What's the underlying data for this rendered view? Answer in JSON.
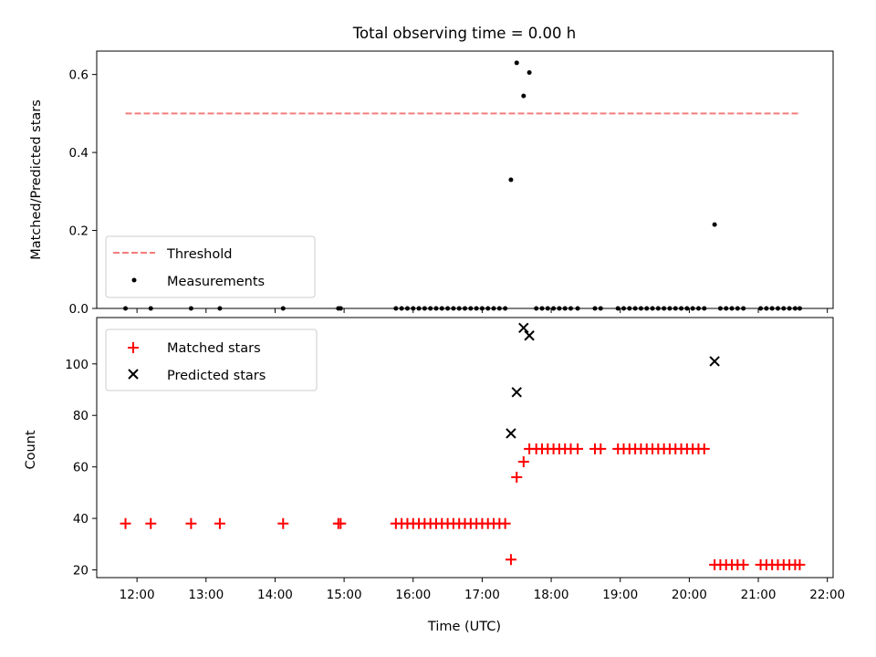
{
  "chart_data": [
    {
      "type": "scatter",
      "title": "Total observing time = 0.00 h",
      "xlabel": "",
      "ylabel": "Matched/Predicted stars",
      "xlim": [
        "11:25",
        "22:05"
      ],
      "ylim": [
        0.0,
        0.66
      ],
      "yticks": [
        "0.0",
        "0.2",
        "0.4",
        "0.6"
      ],
      "legend_position": "lower-left",
      "threshold": {
        "name": "Threshold",
        "y": 0.5,
        "x_start": "11:50",
        "x_end": "21:35",
        "color": "#f47c7c",
        "style": "dashed"
      },
      "series": [
        {
          "name": "Measurements",
          "color": "#000000",
          "marker": "dot",
          "points": [
            {
              "x": "11:50",
              "y": 0.0
            },
            {
              "x": "12:12",
              "y": 0.0
            },
            {
              "x": "12:47",
              "y": 0.0
            },
            {
              "x": "13:12",
              "y": 0.0
            },
            {
              "x": "14:07",
              "y": 0.0
            },
            {
              "x": "14:55",
              "y": 0.0
            },
            {
              "x": "14:57",
              "y": 0.0
            },
            {
              "x": "15:45",
              "y": 0.0
            },
            {
              "x": "15:50",
              "y": 0.0
            },
            {
              "x": "15:55",
              "y": 0.0
            },
            {
              "x": "16:00",
              "y": 0.0
            },
            {
              "x": "16:05",
              "y": 0.0
            },
            {
              "x": "16:10",
              "y": 0.0
            },
            {
              "x": "16:15",
              "y": 0.0
            },
            {
              "x": "16:20",
              "y": 0.0
            },
            {
              "x": "16:25",
              "y": 0.0
            },
            {
              "x": "16:30",
              "y": 0.0
            },
            {
              "x": "16:35",
              "y": 0.0
            },
            {
              "x": "16:40",
              "y": 0.0
            },
            {
              "x": "16:45",
              "y": 0.0
            },
            {
              "x": "16:50",
              "y": 0.0
            },
            {
              "x": "16:55",
              "y": 0.0
            },
            {
              "x": "17:00",
              "y": 0.0
            },
            {
              "x": "17:05",
              "y": 0.0
            },
            {
              "x": "17:10",
              "y": 0.0
            },
            {
              "x": "17:15",
              "y": 0.0
            },
            {
              "x": "17:20",
              "y": 0.0
            },
            {
              "x": "17:25",
              "y": 0.33
            },
            {
              "x": "17:30",
              "y": 0.63
            },
            {
              "x": "17:36",
              "y": 0.545
            },
            {
              "x": "17:41",
              "y": 0.605
            },
            {
              "x": "17:47",
              "y": 0.0
            },
            {
              "x": "17:52",
              "y": 0.0
            },
            {
              "x": "17:57",
              "y": 0.0
            },
            {
              "x": "18:02",
              "y": 0.0
            },
            {
              "x": "18:07",
              "y": 0.0
            },
            {
              "x": "18:12",
              "y": 0.0
            },
            {
              "x": "18:17",
              "y": 0.0
            },
            {
              "x": "18:23",
              "y": 0.0
            },
            {
              "x": "18:38",
              "y": 0.0
            },
            {
              "x": "18:43",
              "y": 0.0
            },
            {
              "x": "18:58",
              "y": 0.0
            },
            {
              "x": "19:03",
              "y": 0.0
            },
            {
              "x": "19:08",
              "y": 0.0
            },
            {
              "x": "19:13",
              "y": 0.0
            },
            {
              "x": "19:18",
              "y": 0.0
            },
            {
              "x": "19:23",
              "y": 0.0
            },
            {
              "x": "19:28",
              "y": 0.0
            },
            {
              "x": "19:33",
              "y": 0.0
            },
            {
              "x": "19:38",
              "y": 0.0
            },
            {
              "x": "19:43",
              "y": 0.0
            },
            {
              "x": "19:48",
              "y": 0.0
            },
            {
              "x": "19:53",
              "y": 0.0
            },
            {
              "x": "19:58",
              "y": 0.0
            },
            {
              "x": "20:03",
              "y": 0.0
            },
            {
              "x": "20:08",
              "y": 0.0
            },
            {
              "x": "20:13",
              "y": 0.0
            },
            {
              "x": "20:22",
              "y": 0.215
            },
            {
              "x": "20:27",
              "y": 0.0
            },
            {
              "x": "20:32",
              "y": 0.0
            },
            {
              "x": "20:37",
              "y": 0.0
            },
            {
              "x": "20:42",
              "y": 0.0
            },
            {
              "x": "20:47",
              "y": 0.0
            },
            {
              "x": "21:02",
              "y": 0.0
            },
            {
              "x": "21:07",
              "y": 0.0
            },
            {
              "x": "21:12",
              "y": 0.0
            },
            {
              "x": "21:17",
              "y": 0.0
            },
            {
              "x": "21:22",
              "y": 0.0
            },
            {
              "x": "21:27",
              "y": 0.0
            },
            {
              "x": "21:32",
              "y": 0.0
            },
            {
              "x": "21:36",
              "y": 0.0
            }
          ]
        }
      ]
    },
    {
      "type": "scatter",
      "title": "",
      "xlabel": "Time (UTC)",
      "ylabel": "Count",
      "xlim": [
        "11:25",
        "22:05"
      ],
      "ylim": [
        17,
        118
      ],
      "yticks": [
        "20",
        "40",
        "60",
        "80",
        "100"
      ],
      "xticks": [
        "12:00",
        "13:00",
        "14:00",
        "15:00",
        "16:00",
        "17:00",
        "18:00",
        "19:00",
        "20:00",
        "21:00",
        "22:00"
      ],
      "legend_position": "upper-left",
      "series": [
        {
          "name": "Matched stars",
          "color": "#ff0000",
          "marker": "plus",
          "points": [
            {
              "x": "11:50",
              "y": 38
            },
            {
              "x": "12:12",
              "y": 38
            },
            {
              "x": "12:47",
              "y": 38
            },
            {
              "x": "13:12",
              "y": 38
            },
            {
              "x": "14:07",
              "y": 38
            },
            {
              "x": "14:55",
              "y": 38
            },
            {
              "x": "14:57",
              "y": 38
            },
            {
              "x": "15:45",
              "y": 38
            },
            {
              "x": "15:50",
              "y": 38
            },
            {
              "x": "15:55",
              "y": 38
            },
            {
              "x": "16:00",
              "y": 38
            },
            {
              "x": "16:05",
              "y": 38
            },
            {
              "x": "16:10",
              "y": 38
            },
            {
              "x": "16:15",
              "y": 38
            },
            {
              "x": "16:20",
              "y": 38
            },
            {
              "x": "16:25",
              "y": 38
            },
            {
              "x": "16:30",
              "y": 38
            },
            {
              "x": "16:35",
              "y": 38
            },
            {
              "x": "16:40",
              "y": 38
            },
            {
              "x": "16:45",
              "y": 38
            },
            {
              "x": "16:50",
              "y": 38
            },
            {
              "x": "16:55",
              "y": 38
            },
            {
              "x": "17:00",
              "y": 38
            },
            {
              "x": "17:05",
              "y": 38
            },
            {
              "x": "17:10",
              "y": 38
            },
            {
              "x": "17:15",
              "y": 38
            },
            {
              "x": "17:20",
              "y": 38
            },
            {
              "x": "17:25",
              "y": 24
            },
            {
              "x": "17:30",
              "y": 56
            },
            {
              "x": "17:36",
              "y": 62
            },
            {
              "x": "17:41",
              "y": 67
            },
            {
              "x": "17:47",
              "y": 67
            },
            {
              "x": "17:52",
              "y": 67
            },
            {
              "x": "17:57",
              "y": 67
            },
            {
              "x": "18:02",
              "y": 67
            },
            {
              "x": "18:07",
              "y": 67
            },
            {
              "x": "18:12",
              "y": 67
            },
            {
              "x": "18:17",
              "y": 67
            },
            {
              "x": "18:23",
              "y": 67
            },
            {
              "x": "18:38",
              "y": 67
            },
            {
              "x": "18:43",
              "y": 67
            },
            {
              "x": "18:58",
              "y": 67
            },
            {
              "x": "19:03",
              "y": 67
            },
            {
              "x": "19:08",
              "y": 67
            },
            {
              "x": "19:13",
              "y": 67
            },
            {
              "x": "19:18",
              "y": 67
            },
            {
              "x": "19:23",
              "y": 67
            },
            {
              "x": "19:28",
              "y": 67
            },
            {
              "x": "19:33",
              "y": 67
            },
            {
              "x": "19:38",
              "y": 67
            },
            {
              "x": "19:43",
              "y": 67
            },
            {
              "x": "19:48",
              "y": 67
            },
            {
              "x": "19:53",
              "y": 67
            },
            {
              "x": "19:58",
              "y": 67
            },
            {
              "x": "20:03",
              "y": 67
            },
            {
              "x": "20:08",
              "y": 67
            },
            {
              "x": "20:13",
              "y": 67
            },
            {
              "x": "20:22",
              "y": 22
            },
            {
              "x": "20:27",
              "y": 22
            },
            {
              "x": "20:32",
              "y": 22
            },
            {
              "x": "20:37",
              "y": 22
            },
            {
              "x": "20:42",
              "y": 22
            },
            {
              "x": "20:47",
              "y": 22
            },
            {
              "x": "21:02",
              "y": 22
            },
            {
              "x": "21:07",
              "y": 22
            },
            {
              "x": "21:12",
              "y": 22
            },
            {
              "x": "21:17",
              "y": 22
            },
            {
              "x": "21:22",
              "y": 22
            },
            {
              "x": "21:27",
              "y": 22
            },
            {
              "x": "21:32",
              "y": 22
            },
            {
              "x": "21:36",
              "y": 22
            }
          ]
        },
        {
          "name": "Predicted stars",
          "color": "#000000",
          "marker": "x",
          "points": [
            {
              "x": "17:25",
              "y": 73
            },
            {
              "x": "17:30",
              "y": 89
            },
            {
              "x": "17:36",
              "y": 114
            },
            {
              "x": "17:41",
              "y": 111
            },
            {
              "x": "20:22",
              "y": 101
            }
          ]
        }
      ]
    }
  ]
}
